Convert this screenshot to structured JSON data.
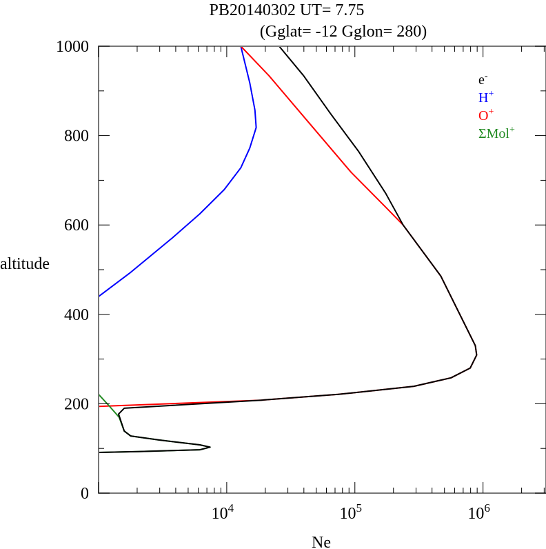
{
  "chart_data": {
    "type": "line",
    "title": "PB20140302   UT=  7.75",
    "subtitle": "(Gglat= -12   Gglon=  280)",
    "xlabel": "Ne",
    "ylabel": "altitude",
    "xscale": "log",
    "xlim": [
      1000,
      3100000
    ],
    "ylim": [
      0,
      1000
    ],
    "x_ticks": [
      {
        "value": 10000,
        "base": "10",
        "exp": "4"
      },
      {
        "value": 100000,
        "base": "10",
        "exp": "5"
      },
      {
        "value": 1000000,
        "base": "10",
        "exp": "6"
      }
    ],
    "y_ticks": [
      "0",
      "200",
      "400",
      "600",
      "800",
      "1000"
    ],
    "grid": false,
    "legend_position": "top-right",
    "series": [
      {
        "name": "e-",
        "label_base": "e",
        "label_sup": "-",
        "color": "#000000",
        "log10_x": [
          4.409,
          4.6,
          4.81,
          5.03,
          5.24,
          5.376,
          5.67,
          5.94,
          5.95,
          5.9,
          5.75,
          5.46,
          4.87,
          4.27,
          3.2,
          3.156,
          3.2,
          3.25,
          3.47,
          3.79,
          3.87,
          3.79,
          3.31,
          3.0
        ],
        "alt": [
          1000,
          934,
          849,
          764,
          671,
          600,
          486,
          330,
          309,
          280,
          258,
          239,
          221,
          208,
          190,
          177,
          139,
          128,
          119,
          108,
          103,
          97,
          93,
          91
        ]
      },
      {
        "name": "H+",
        "label_base": "H",
        "label_sup": "+",
        "color": "#0000ff",
        "log10_x": [
          4.11,
          4.18,
          4.22,
          4.23,
          4.18,
          4.11,
          3.98,
          3.79,
          3.575,
          3.25,
          3.0
        ],
        "alt": [
          1000,
          918,
          857,
          818,
          772,
          728,
          679,
          625,
          571,
          494,
          440
        ]
      },
      {
        "name": "O+",
        "label_base": "O",
        "label_sup": "+",
        "color": "#ff0000",
        "log10_x": [
          4.11,
          4.33,
          4.65,
          4.97,
          5.24,
          5.376,
          5.67,
          5.94,
          5.95,
          5.9,
          5.75,
          5.46,
          4.87,
          4.27,
          3.0
        ],
        "alt": [
          1000,
          934,
          826,
          718,
          640,
          600,
          486,
          330,
          309,
          280,
          258,
          239,
          221,
          208,
          194
        ]
      },
      {
        "name": "ΣMol+",
        "label_base": "ΣMol",
        "label_sup": "+",
        "color": "#228b22",
        "log10_x": [
          3.0,
          3.08,
          3.16,
          3.2,
          3.25,
          3.47,
          3.79,
          3.87,
          3.79,
          3.31,
          3.0
        ],
        "alt": [
          221,
          196,
          170,
          139,
          128,
          119,
          108,
          103,
          97,
          93,
          91
        ]
      }
    ]
  }
}
